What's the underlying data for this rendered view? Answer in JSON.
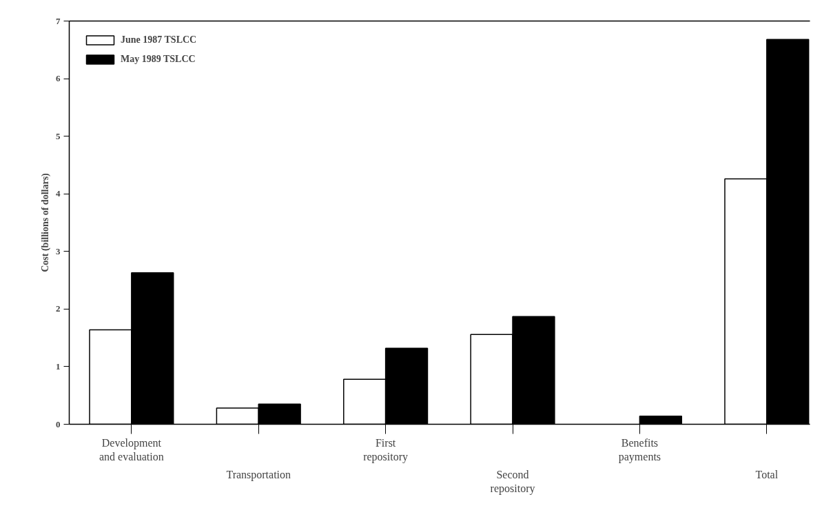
{
  "chart_data": {
    "type": "bar",
    "ylabel": "Cost (billions of dollars)",
    "categories": [
      "Development\nand evaluation",
      "Transportation",
      "First\nrepository",
      "Second\nrepository",
      "Benefits\npayments",
      "Total"
    ],
    "series": [
      {
        "name": "June 1987 TSLCC",
        "color": "#ffffff",
        "values": [
          1.64,
          0.28,
          0.78,
          1.56,
          null,
          4.26
        ]
      },
      {
        "name": "May 1989 TSLCC",
        "color": "#000000",
        "values": [
          2.63,
          0.35,
          1.32,
          1.87,
          0.14,
          6.68
        ]
      }
    ],
    "ylim": [
      0,
      7
    ],
    "yticks": [
      0,
      1,
      2,
      3,
      4,
      5,
      6,
      7
    ],
    "grid": false,
    "legend": "top left"
  }
}
